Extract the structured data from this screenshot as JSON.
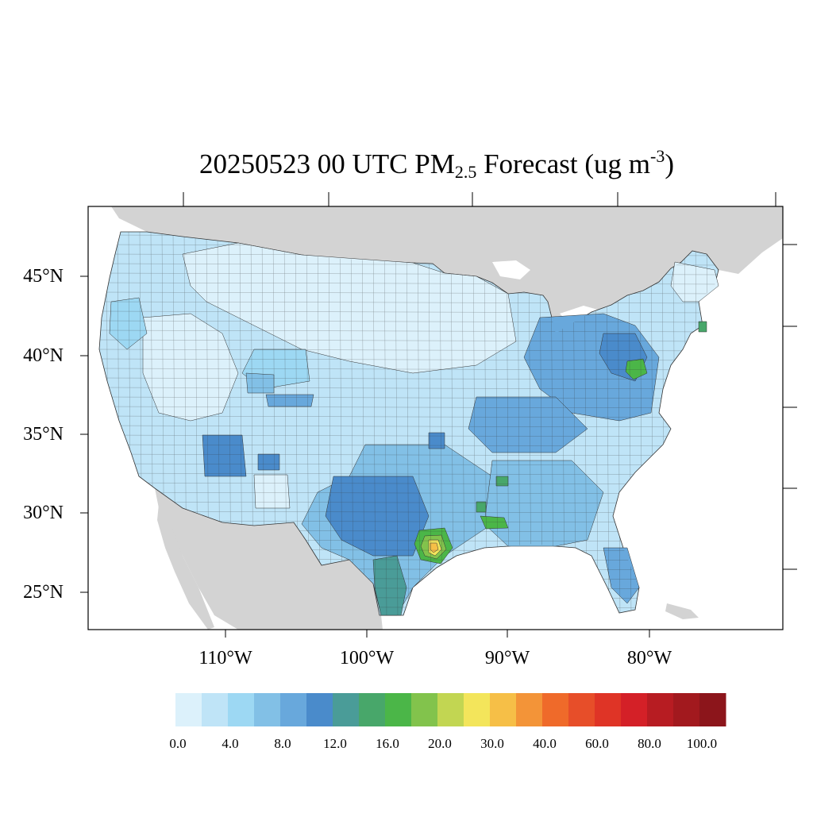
{
  "title": {
    "main": "20250523 00 UTC PM",
    "subscript": "2.5",
    "rest": " Forecast (ug m",
    "superscript": "-3",
    "close": ")"
  },
  "map": {
    "lat_labels": [
      "45°N",
      "40°N",
      "35°N",
      "30°N",
      "25°N"
    ],
    "lon_labels": [
      "110°W",
      "100°W",
      "90°W",
      "80°W"
    ],
    "land_fill_color": "#d3d3d3",
    "water_color": "#ffffff"
  },
  "colorbar": {
    "labels": [
      "0.0",
      "4.0",
      "8.0",
      "12.0",
      "16.0",
      "20.0",
      "30.0",
      "40.0",
      "60.0",
      "80.0",
      "100.0"
    ],
    "colors": [
      "#dcf1fb",
      "#bfe4f7",
      "#9dd8f3",
      "#82c0e6",
      "#68a8dc",
      "#4a8bcb",
      "#4a9c98",
      "#48a76a",
      "#4bb648",
      "#82c34c",
      "#c2d652",
      "#f3e55b",
      "#f6bf47",
      "#f39438",
      "#ef6a2a",
      "#e74e29",
      "#df3426",
      "#d42027",
      "#b71c22",
      "#a2191e",
      "#8c151b"
    ]
  }
}
